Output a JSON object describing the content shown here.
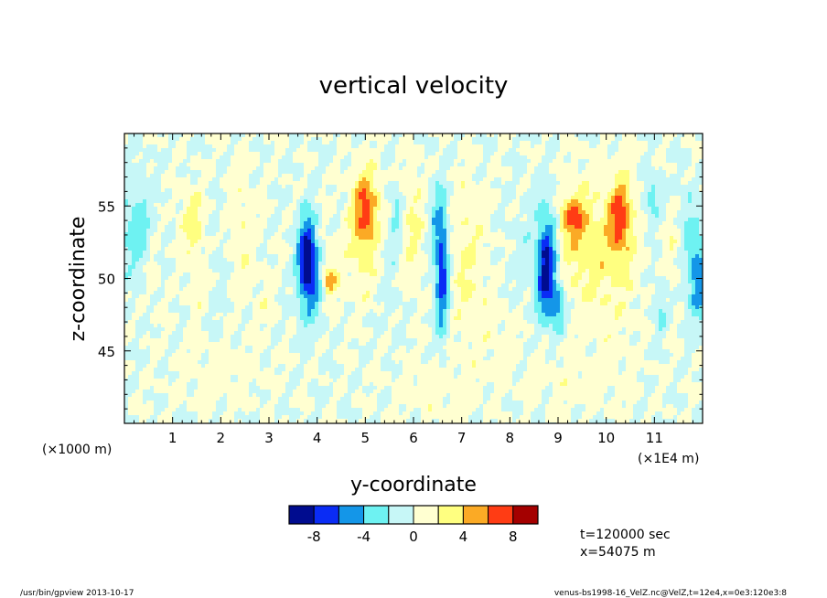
{
  "chart_data": {
    "type": "heatmap",
    "title": "vertical velocity",
    "xlabel": "y-coordinate",
    "ylabel": "z-coordinate",
    "x_unit_left": "(×1000 m)",
    "x_unit_right": "(×1E4 m)",
    "xlim": [
      0,
      12
    ],
    "ylim": [
      40,
      60
    ],
    "x_ticks": [
      1,
      2,
      3,
      4,
      5,
      6,
      7,
      8,
      9,
      10,
      11
    ],
    "y_ticks": [
      45,
      50,
      55
    ],
    "colorbar": {
      "levels": [
        -10,
        -8,
        -6,
        -4,
        -2,
        0,
        2,
        4,
        6,
        8,
        10
      ],
      "tick_labels": [
        "-8",
        "-4",
        "0",
        "4",
        "8"
      ],
      "tick_values": [
        -8,
        -4,
        0,
        4,
        8
      ],
      "colors": [
        "#000c8f",
        "#0a2cf5",
        "#1496e8",
        "#6ef2f2",
        "#c7f7f7",
        "#ffffd1",
        "#ffff80",
        "#fbaa25",
        "#ff3c14",
        "#a40000"
      ]
    },
    "features": [
      {
        "y": 0.25,
        "z": 53.5,
        "w": -3.2,
        "sy": 0.22,
        "sz": 2.5
      },
      {
        "y": 0.6,
        "z": 50.5,
        "w": 1.2,
        "sy": 0.12,
        "sz": 1.8
      },
      {
        "y": 1.4,
        "z": 54.0,
        "w": 3.0,
        "sy": 0.18,
        "sz": 1.6
      },
      {
        "y": 1.5,
        "z": 49.5,
        "w": 1.3,
        "sy": 0.12,
        "sz": 2.0
      },
      {
        "y": 2.0,
        "z": 51.0,
        "w": -1.0,
        "sy": 0.15,
        "sz": 3.0
      },
      {
        "y": 2.4,
        "z": 53.0,
        "w": 1.6,
        "sy": 0.25,
        "sz": 3.0
      },
      {
        "y": 3.0,
        "z": 48.5,
        "w": 1.4,
        "sy": 0.15,
        "sz": 1.2
      },
      {
        "y": 3.8,
        "z": 51.5,
        "w": -8.5,
        "sy": 0.14,
        "sz": 2.0
      },
      {
        "y": 3.9,
        "z": 49.5,
        "w": -3.5,
        "sy": 0.2,
        "sz": 2.0
      },
      {
        "y": 4.25,
        "z": 49.8,
        "w": 4.5,
        "sy": 0.1,
        "sz": 0.6
      },
      {
        "y": 4.2,
        "z": 50.5,
        "w": 1.5,
        "sy": 0.22,
        "sz": 1.8
      },
      {
        "y": 5.0,
        "z": 55.0,
        "w": 5.5,
        "sy": 0.2,
        "sz": 1.8
      },
      {
        "y": 5.0,
        "z": 52.0,
        "w": 2.5,
        "sy": 0.25,
        "sz": 2.5
      },
      {
        "y": 5.65,
        "z": 54.8,
        "w": -3.0,
        "sy": 0.08,
        "sz": 1.0
      },
      {
        "y": 5.5,
        "z": 51.0,
        "w": -1.2,
        "sy": 0.2,
        "sz": 3.0
      },
      {
        "y": 6.0,
        "z": 53.5,
        "w": 2.3,
        "sy": 0.18,
        "sz": 3.0
      },
      {
        "y": 6.45,
        "z": 54.0,
        "w": -2.5,
        "sy": 0.12,
        "sz": 2.0
      },
      {
        "y": 6.6,
        "z": 50.5,
        "w": -7.5,
        "sy": 0.1,
        "sz": 3.0
      },
      {
        "y": 7.1,
        "z": 51.5,
        "w": 2.2,
        "sy": 0.28,
        "sz": 3.5
      },
      {
        "y": 7.8,
        "z": 46.5,
        "w": 1.0,
        "sy": 0.4,
        "sz": 2.0
      },
      {
        "y": 8.3,
        "z": 51.0,
        "w": -1.0,
        "sy": 0.25,
        "sz": 3.0
      },
      {
        "y": 8.75,
        "z": 50.2,
        "w": -9.0,
        "sy": 0.13,
        "sz": 2.0
      },
      {
        "y": 8.8,
        "z": 53.5,
        "w": -3.0,
        "sy": 0.15,
        "sz": 2.0
      },
      {
        "y": 9.0,
        "z": 48.0,
        "w": -5.0,
        "sy": 0.1,
        "sz": 1.2
      },
      {
        "y": 9.3,
        "z": 54.2,
        "w": 5.0,
        "sy": 0.18,
        "sz": 1.0
      },
      {
        "y": 9.4,
        "z": 52.5,
        "w": 2.5,
        "sy": 0.3,
        "sz": 3.0
      },
      {
        "y": 10.3,
        "z": 54.3,
        "w": 5.5,
        "sy": 0.17,
        "sz": 1.8
      },
      {
        "y": 10.1,
        "z": 51.5,
        "w": 2.6,
        "sy": 0.38,
        "sz": 3.5
      },
      {
        "y": 10.95,
        "z": 55.5,
        "w": -3.0,
        "sy": 0.12,
        "sz": 1.2
      },
      {
        "y": 11.1,
        "z": 48.0,
        "w": -2.5,
        "sy": 0.1,
        "sz": 1.5
      },
      {
        "y": 11.35,
        "z": 52.0,
        "w": 1.5,
        "sy": 0.12,
        "sz": 2.0
      },
      {
        "y": 11.9,
        "z": 50.0,
        "w": -6.0,
        "sy": 0.14,
        "sz": 2.0
      },
      {
        "y": 11.7,
        "z": 54.0,
        "w": -2.0,
        "sy": 0.15,
        "sz": 2.0
      },
      {
        "y": 6.5,
        "z": 42.5,
        "w": 1.2,
        "sy": 0.6,
        "sz": 1.5
      },
      {
        "y": 9.5,
        "z": 43.0,
        "w": 1.0,
        "sy": 0.8,
        "sz": 1.5
      },
      {
        "y": 2.0,
        "z": 43.5,
        "w": 1.0,
        "sy": 0.7,
        "sz": 1.5
      }
    ]
  },
  "annotations": {
    "time": "t=120000 sec",
    "position": "x=54075 m"
  },
  "footer": {
    "left": "/usr/bin/gpview  2013-10-17",
    "right": "venus-bs1998-16_VelZ.nc@VelZ,t=12e4,x=0e3:120e3:8"
  }
}
